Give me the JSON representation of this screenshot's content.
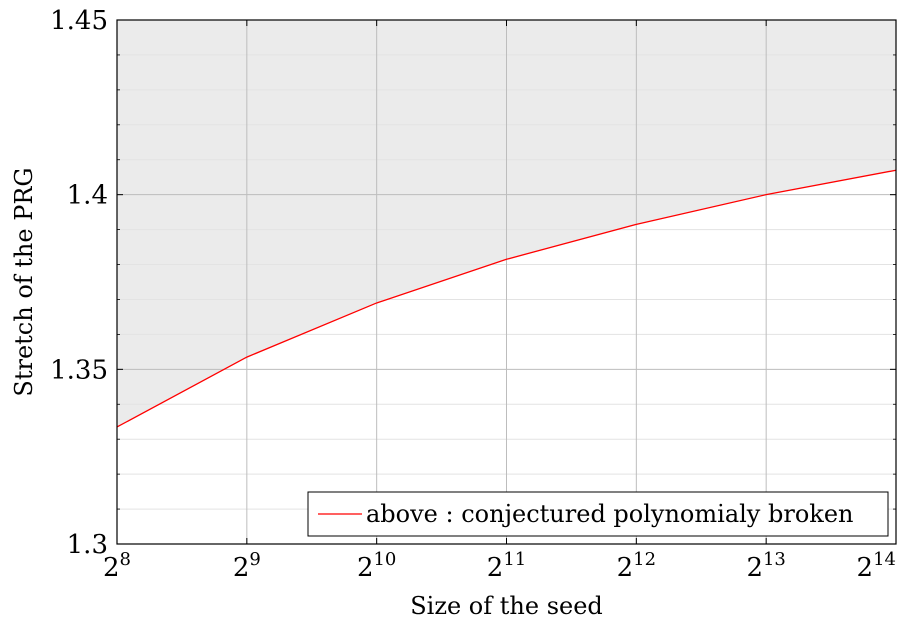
{
  "chart_data": {
    "type": "area",
    "xlabel": "Size of the seed",
    "ylabel": "Stretch of the PRG",
    "x_scale": "log2",
    "x_ticks": [
      {
        "base": "2",
        "exp": "8"
      },
      {
        "base": "2",
        "exp": "9"
      },
      {
        "base": "2",
        "exp": "10"
      },
      {
        "base": "2",
        "exp": "11"
      },
      {
        "base": "2",
        "exp": "12"
      },
      {
        "base": "2",
        "exp": "13"
      },
      {
        "base": "2",
        "exp": "14"
      }
    ],
    "x": [
      256,
      512,
      1024,
      2048,
      4096,
      8192,
      16384
    ],
    "xlim": [
      256,
      16384
    ],
    "ylim": [
      1.3,
      1.45
    ],
    "y_ticks": [
      "1.3",
      "1.35",
      "1.4",
      "1.45"
    ],
    "y_tick_values": [
      1.3,
      1.35,
      1.4,
      1.45
    ],
    "y_minor_step": 0.01,
    "grid": true,
    "legend_position": "bottom-right",
    "series": [
      {
        "name": "above : conjectured polynomialy broken",
        "color": "#ff0000",
        "fill_above": "#ebebeb",
        "values": [
          1.3335,
          1.3535,
          1.369,
          1.3815,
          1.3915,
          1.4,
          1.407
        ]
      }
    ]
  }
}
